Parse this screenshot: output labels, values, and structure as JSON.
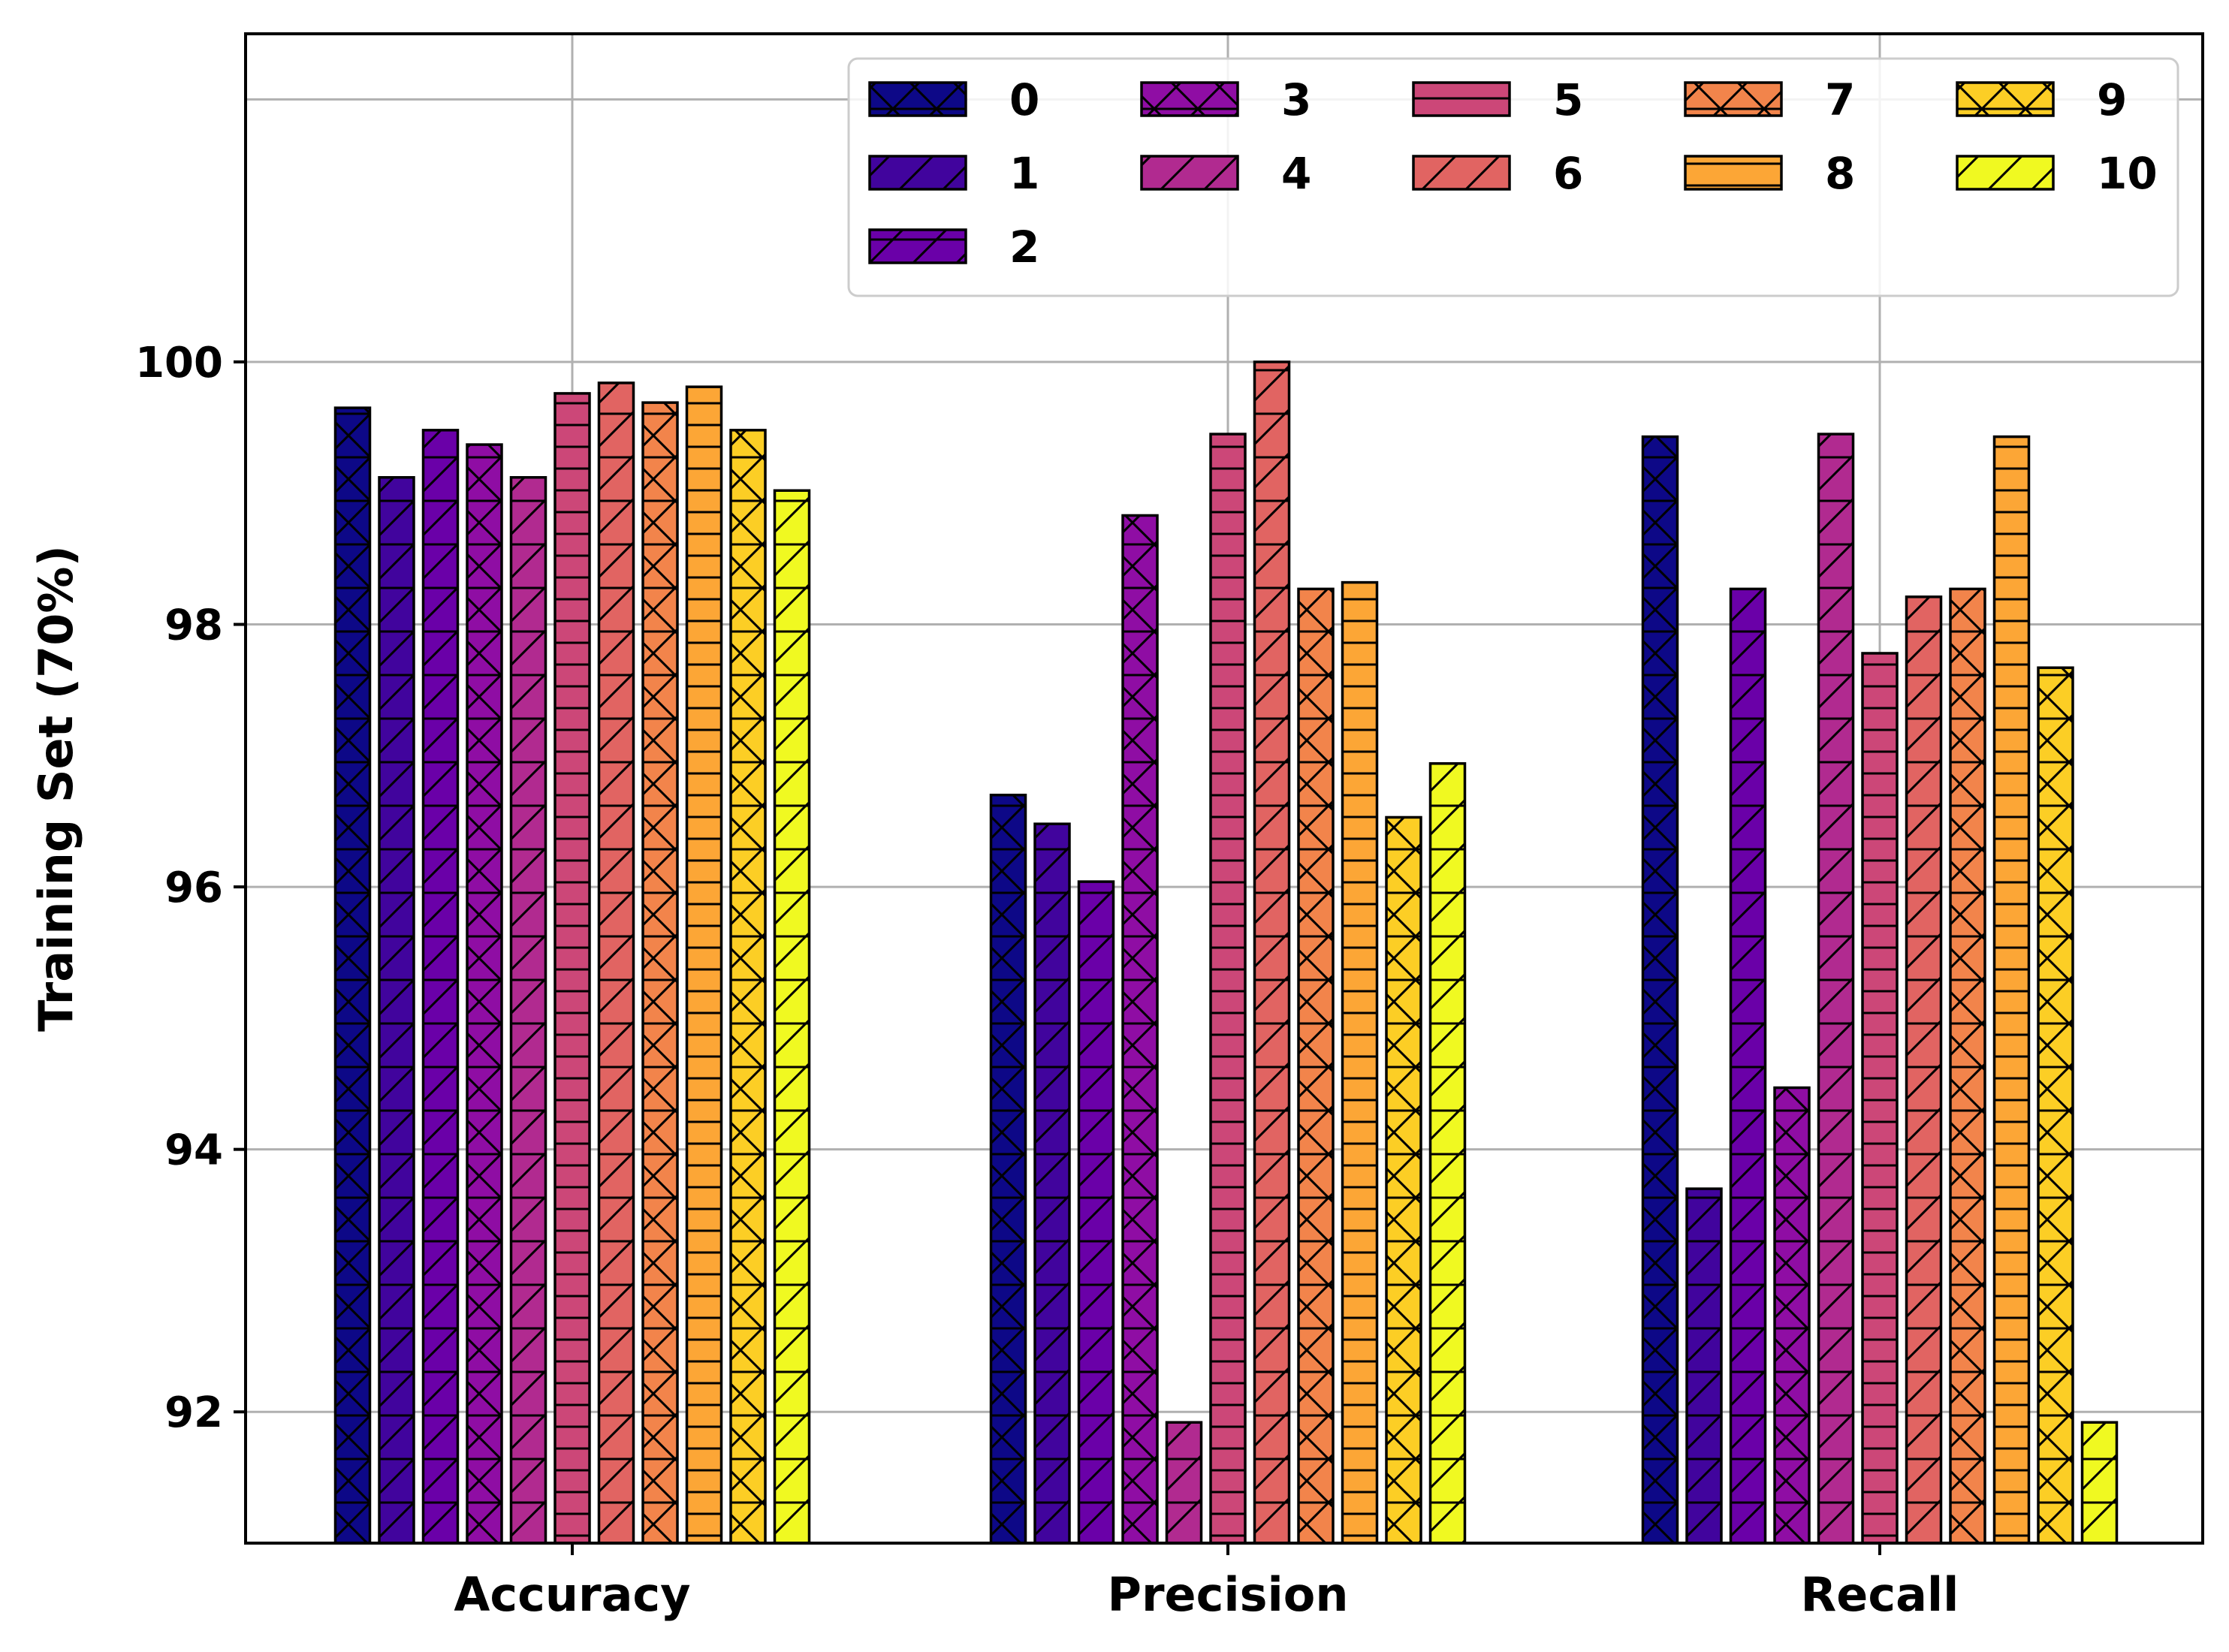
{
  "chart_data": {
    "type": "bar",
    "title": "",
    "xlabel": "",
    "ylabel": "Training Set (70%)",
    "ylim": [
      91,
      102.5
    ],
    "yticks": [
      92,
      94,
      96,
      98,
      100
    ],
    "yticklabels": [
      "92",
      "94",
      "96",
      "98",
      "100"
    ],
    "grid": true,
    "legend_position": "top-right",
    "categories": [
      "Accuracy",
      "Precision",
      "Recall"
    ],
    "series": [
      {
        "name": "0",
        "color": "#0d0887",
        "values": [
          99.65,
          96.7,
          99.43
        ]
      },
      {
        "name": "1",
        "color": "#41049d",
        "values": [
          99.12,
          96.48,
          93.7
        ]
      },
      {
        "name": "2",
        "color": "#6a00a8",
        "values": [
          99.48,
          96.04,
          98.27
        ]
      },
      {
        "name": "3",
        "color": "#8f0da4",
        "values": [
          99.37,
          98.83,
          94.47
        ]
      },
      {
        "name": "4",
        "color": "#b12a90",
        "values": [
          99.12,
          91.92,
          99.45
        ]
      },
      {
        "name": "5",
        "color": "#cc4778",
        "values": [
          99.76,
          99.45,
          97.78
        ]
      },
      {
        "name": "6",
        "color": "#e16462",
        "values": [
          99.84,
          100.0,
          98.21
        ]
      },
      {
        "name": "7",
        "color": "#f2844b",
        "values": [
          99.69,
          98.27,
          98.27
        ]
      },
      {
        "name": "8",
        "color": "#fca636",
        "values": [
          99.81,
          98.32,
          99.43
        ]
      },
      {
        "name": "9",
        "color": "#fcce25",
        "values": [
          99.48,
          96.53,
          97.67
        ]
      },
      {
        "name": "10",
        "color": "#f0f921",
        "values": [
          99.02,
          96.94,
          91.92
        ]
      }
    ]
  }
}
